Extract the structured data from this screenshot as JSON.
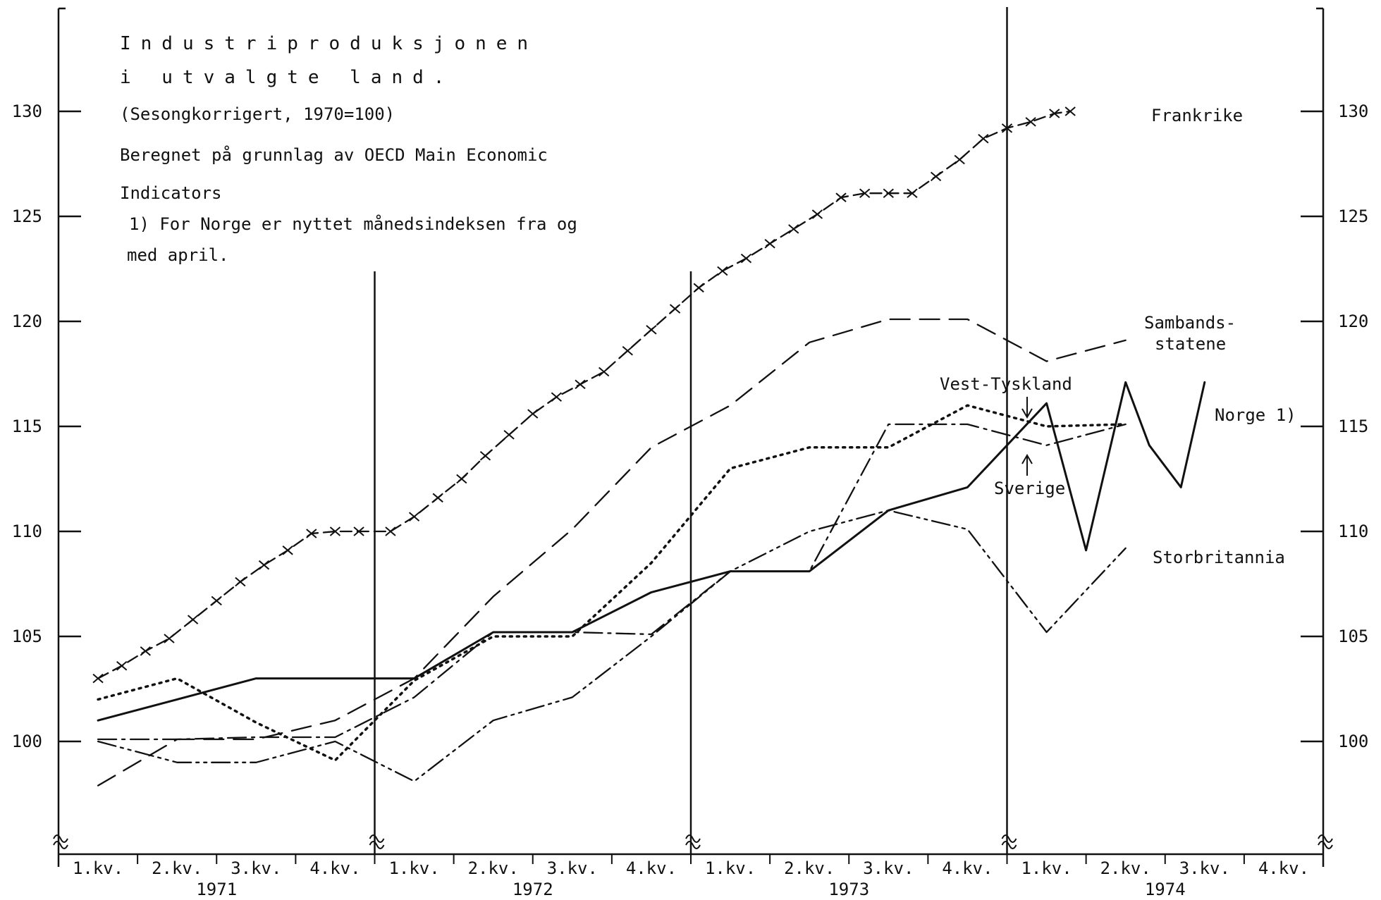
{
  "chart_data": {
    "type": "line",
    "title_lines": [
      "Industriproduksjonen",
      "i utvalgte land."
    ],
    "notes": [
      "(Sesongkorrigert, 1970=100)",
      "Beregnet på grunnlag av OECD Main Economic",
      "Indicators",
      "1)  For Norge er nyttet månedsindeksen fra og",
      "med april."
    ],
    "y_ticks": [
      "100",
      "105",
      "110",
      "115",
      "120",
      "125",
      "130"
    ],
    "ylim": [
      95,
      135
    ],
    "quarter_labels": [
      "1.kv.",
      "2.kv.",
      "3.kv.",
      "4.kv.",
      "1.kv.",
      "2.kv.",
      "3.kv.",
      "4.kv.",
      "1.kv.",
      "2.kv.",
      "3.kv.",
      "4.kv.",
      "1.kv.",
      "2.kv.",
      "3.kv.",
      "4.kv."
    ],
    "year_labels": [
      "1971",
      "1972",
      "1973",
      "1974"
    ],
    "x_range_quarters": [
      0,
      16
    ],
    "grid": false,
    "series": [
      {
        "name": "Frankrike",
        "style": "cross-dash",
        "points": [
          [
            0.5,
            103
          ],
          [
            0.8,
            103.6
          ],
          [
            1.1,
            104.3
          ],
          [
            1.4,
            104.9
          ],
          [
            1.7,
            105.8
          ],
          [
            2.0,
            106.7
          ],
          [
            2.3,
            107.6
          ],
          [
            2.6,
            108.4
          ],
          [
            2.9,
            109.1
          ],
          [
            3.2,
            109.9
          ],
          [
            3.5,
            110
          ],
          [
            3.8,
            110
          ],
          [
            4.2,
            110
          ],
          [
            4.5,
            110.7
          ],
          [
            4.8,
            111.6
          ],
          [
            5.1,
            112.5
          ],
          [
            5.4,
            113.6
          ],
          [
            5.7,
            114.6
          ],
          [
            6.0,
            115.6
          ],
          [
            6.3,
            116.4
          ],
          [
            6.6,
            117
          ],
          [
            6.9,
            117.6
          ],
          [
            7.2,
            118.6
          ],
          [
            7.5,
            119.6
          ],
          [
            7.8,
            120.6
          ],
          [
            8.1,
            121.6
          ],
          [
            8.4,
            122.4
          ],
          [
            8.7,
            123
          ],
          [
            9.0,
            123.7
          ],
          [
            9.3,
            124.4
          ],
          [
            9.6,
            125.1
          ],
          [
            9.9,
            125.9
          ],
          [
            10.2,
            126.1
          ],
          [
            10.5,
            126.1
          ],
          [
            10.8,
            126.1
          ],
          [
            11.1,
            126.9
          ],
          [
            11.4,
            127.7
          ],
          [
            11.7,
            128.7
          ],
          [
            12.0,
            129.2
          ],
          [
            12.3,
            129.5
          ],
          [
            12.6,
            129.9
          ],
          [
            12.8,
            130
          ]
        ]
      },
      {
        "name": "Sambands- statene",
        "style": "dash",
        "points": [
          [
            0.5,
            97.9
          ],
          [
            1.5,
            100.1
          ],
          [
            2.5,
            100.1
          ],
          [
            3.5,
            101
          ],
          [
            4.5,
            103
          ],
          [
            5.5,
            106.9
          ],
          [
            6.5,
            110.1
          ],
          [
            7.5,
            114
          ],
          [
            8.5,
            116
          ],
          [
            9.5,
            119
          ],
          [
            10.5,
            120.1
          ],
          [
            11.5,
            120.1
          ],
          [
            12.5,
            118.1
          ],
          [
            13.5,
            119.1
          ]
        ]
      },
      {
        "name": "Vest-Tyskland",
        "style": "dot",
        "points": [
          [
            0.5,
            102
          ],
          [
            1.5,
            103
          ],
          [
            2.5,
            100.9
          ],
          [
            3.5,
            99.1
          ],
          [
            4.5,
            102.9
          ],
          [
            5.5,
            105
          ],
          [
            6.5,
            105
          ],
          [
            7.5,
            108.5
          ],
          [
            8.5,
            113
          ],
          [
            9.5,
            114
          ],
          [
            10.5,
            114
          ],
          [
            11.5,
            116
          ],
          [
            12.5,
            115
          ],
          [
            13.5,
            115.1
          ]
        ]
      },
      {
        "name": "Sverige",
        "style": "dash-dot",
        "points": [
          [
            0.5,
            100.1
          ],
          [
            1.5,
            100.1
          ],
          [
            2.5,
            100.2
          ],
          [
            3.5,
            100.2
          ],
          [
            4.5,
            102.1
          ],
          [
            5.5,
            105.2
          ],
          [
            6.5,
            105.2
          ],
          [
            7.5,
            105.1
          ],
          [
            8.5,
            108.1
          ],
          [
            9.5,
            108.1
          ],
          [
            10.5,
            115.1
          ],
          [
            11.5,
            115.1
          ],
          [
            12.5,
            114.1
          ],
          [
            13.5,
            115.1
          ]
        ]
      },
      {
        "name": "Norge 1)",
        "style": "solid",
        "points": [
          [
            0.5,
            101
          ],
          [
            1.5,
            102
          ],
          [
            2.5,
            103
          ],
          [
            3.5,
            103
          ],
          [
            4.5,
            103
          ],
          [
            5.5,
            105.2
          ],
          [
            6.5,
            105.2
          ],
          [
            7.5,
            107.1
          ],
          [
            8.5,
            108.1
          ],
          [
            9.5,
            108.1
          ],
          [
            10.5,
            111
          ],
          [
            11.5,
            112.1
          ],
          [
            12.5,
            116.1
          ],
          [
            13.0,
            109.1
          ],
          [
            13.5,
            117.1
          ],
          [
            13.8,
            114.1
          ],
          [
            14.2,
            112.1
          ],
          [
            14.5,
            117.1
          ]
        ]
      },
      {
        "name": "Storbritannia",
        "style": "dash-dot-dot",
        "points": [
          [
            0.5,
            100
          ],
          [
            1.5,
            99
          ],
          [
            2.5,
            99
          ],
          [
            3.5,
            100
          ],
          [
            4.5,
            98.1
          ],
          [
            5.5,
            101
          ],
          [
            6.5,
            102.1
          ],
          [
            7.5,
            105
          ],
          [
            8.5,
            108.1
          ],
          [
            9.5,
            110
          ],
          [
            10.5,
            111
          ],
          [
            11.5,
            110.1
          ],
          [
            12.5,
            105.2
          ],
          [
            13.5,
            109.2
          ]
        ]
      }
    ]
  }
}
